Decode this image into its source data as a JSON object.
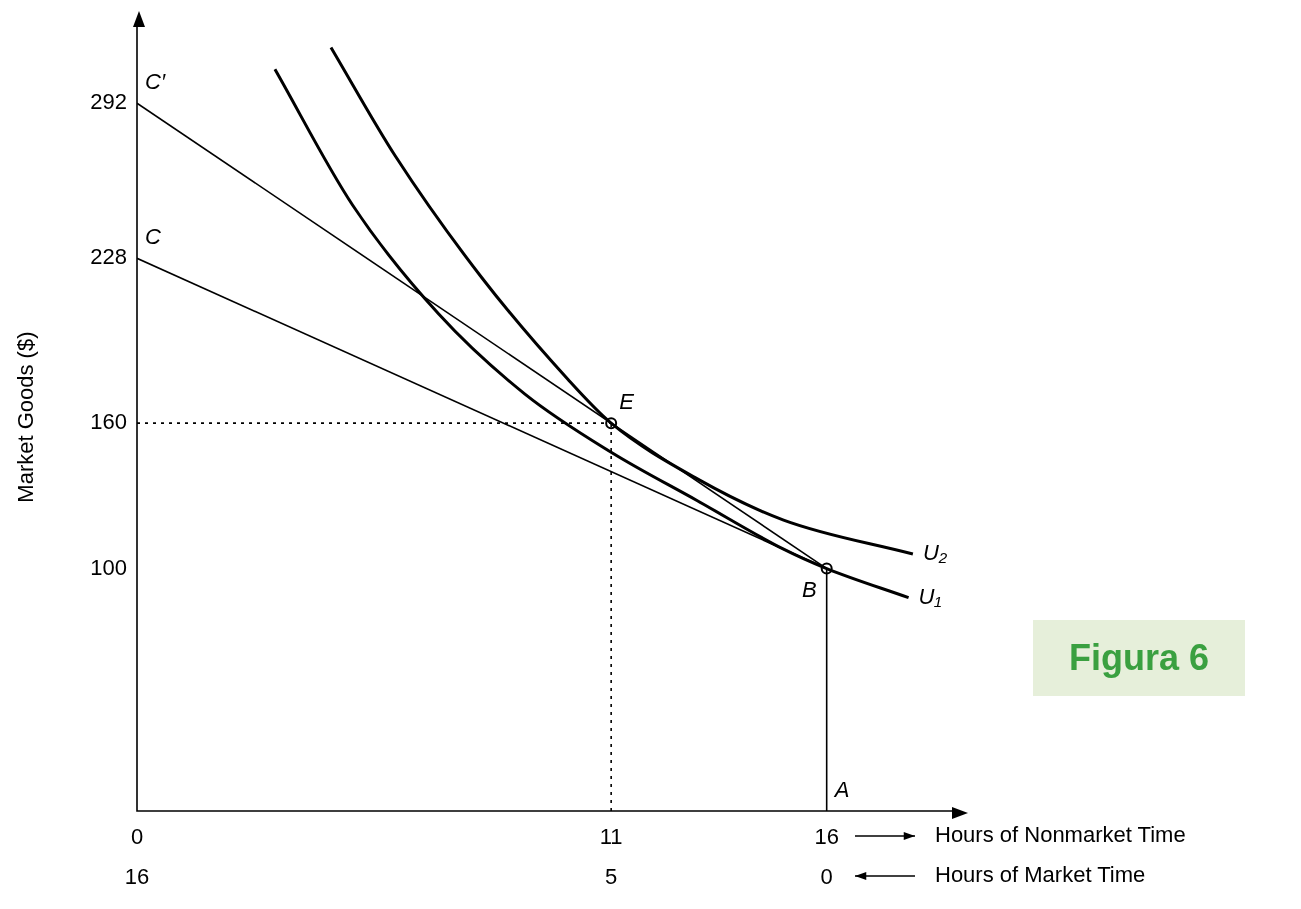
{
  "chart_data": {
    "type": "line",
    "ylabel": "Market Goods ($)",
    "xlabel": "Hours of Nonmarket Time",
    "x2label": "Hours of Market Time",
    "xlim": [
      0,
      19
    ],
    "xticks": [
      0,
      11,
      16
    ],
    "x2lim": [
      16,
      -3
    ],
    "x2ticks": [
      16,
      5,
      0
    ],
    "ylim": [
      0,
      325
    ],
    "yticks": [
      100,
      160,
      228,
      292
    ],
    "grid": false,
    "legend": false,
    "series": [
      {
        "type": "line",
        "color": "#000000",
        "marker": "none",
        "line_style": "solid",
        "x": [
          0,
          16
        ],
        "values": [
          292,
          100
        ]
      },
      {
        "type": "line",
        "color": "#000000",
        "marker": "none",
        "line_style": "solid",
        "x": [
          0,
          16
        ],
        "values": [
          228,
          100
        ]
      },
      {
        "type": "line",
        "color": "#000000",
        "marker": "none",
        "line_style": "solid",
        "x": [
          3.2,
          5,
          7,
          9,
          11,
          13,
          15,
          16,
          17.9
        ],
        "values": [
          306,
          250,
          205,
          172,
          148,
          128,
          108,
          100,
          88
        ]
      },
      {
        "type": "line",
        "color": "#000000",
        "marker": "none",
        "line_style": "solid",
        "x": [
          4.5,
          6,
          8,
          10,
          11,
          13,
          15,
          18
        ],
        "values": [
          315,
          270,
          220,
          178,
          160,
          137,
          120,
          106
        ]
      },
      {
        "type": "line",
        "color": "#000000",
        "marker": "none",
        "line_style": "dotted",
        "x": [
          0,
          11
        ],
        "values": [
          160,
          160
        ]
      },
      {
        "type": "line",
        "color": "#000000",
        "marker": "none",
        "line_style": "dotted",
        "x": [
          11,
          11
        ],
        "values": [
          0,
          160
        ]
      },
      {
        "type": "line",
        "color": "#000000",
        "marker": "none",
        "line_style": "solid",
        "x": [
          16,
          16
        ],
        "values": [
          0,
          100
        ]
      },
      {
        "type": "scatter",
        "color": "#000000",
        "marker": "circle",
        "x": [
          11,
          16
        ],
        "values": [
          160,
          100
        ]
      }
    ],
    "annotations": [
      {
        "text": "C′",
        "x": 0,
        "y": 292
      },
      {
        "text": "C",
        "x": 0,
        "y": 228
      },
      {
        "text": "E",
        "x": 11,
        "y": 160
      },
      {
        "text": "B",
        "x": 16,
        "y": 100
      },
      {
        "text": "A",
        "x": 16,
        "y": 0
      },
      {
        "text": "U₂",
        "x": 18,
        "y": 106
      },
      {
        "text": "U₁",
        "x": 17.9,
        "y": 88
      },
      "Figura 6"
    ]
  }
}
